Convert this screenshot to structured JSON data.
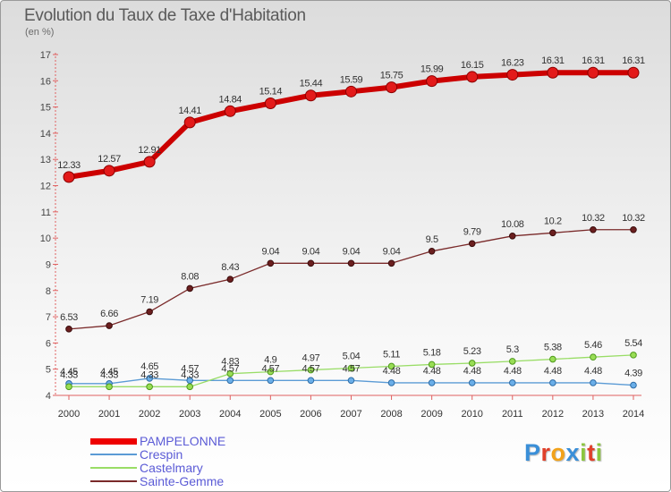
{
  "title": "Evolution du Taux de Taxe d'Habitation",
  "subtitle": "(en %)",
  "logo": {
    "letters": [
      {
        "ch": "P",
        "color": "#3a8fd8"
      },
      {
        "ch": "r",
        "color": "#e0402a"
      },
      {
        "ch": "o",
        "color": "#f2a21a"
      },
      {
        "ch": "x",
        "color": "#3a8fd8"
      },
      {
        "ch": "i",
        "color": "#8cc63f"
      },
      {
        "ch": "t",
        "color": "#e0402a"
      },
      {
        "ch": "i",
        "color": "#8cc63f"
      }
    ]
  },
  "chart_data": {
    "type": "line",
    "title": "Evolution du Taux de Taxe d'Habitation",
    "subtitle": "(en %)",
    "xlabel": "",
    "ylabel": "",
    "categories": [
      "2000",
      "2001",
      "2002",
      "2003",
      "2004",
      "2005",
      "2006",
      "2007",
      "2008",
      "2009",
      "2010",
      "2011",
      "2012",
      "2013",
      "2014"
    ],
    "ylim": [
      4,
      17
    ],
    "yticks": [
      4,
      5,
      6,
      7,
      8,
      9,
      10,
      11,
      12,
      13,
      14,
      15,
      16,
      17
    ],
    "grid": false,
    "legend_position": "bottom-left",
    "series": [
      {
        "name": "PAMPELONNE",
        "color": "#ff0000",
        "values": [
          12.33,
          12.57,
          12.91,
          14.41,
          14.84,
          15.14,
          15.44,
          15.59,
          15.75,
          15.99,
          16.15,
          16.23,
          16.31,
          16.31,
          16.31
        ]
      },
      {
        "name": "Crespin",
        "color": "#5b9bd5",
        "values": [
          4.45,
          4.45,
          4.65,
          4.57,
          4.57,
          4.57,
          4.57,
          4.57,
          4.48,
          4.48,
          4.48,
          4.48,
          4.48,
          4.48,
          4.39
        ]
      },
      {
        "name": "Castelmary",
        "color": "#99dd66",
        "values": [
          4.33,
          4.33,
          4.33,
          4.33,
          4.83,
          4.9,
          4.97,
          5.04,
          5.11,
          5.18,
          5.23,
          5.3,
          5.38,
          5.46,
          5.54
        ]
      },
      {
        "name": "Sainte-Gemme",
        "color": "#7a2a2a",
        "values": [
          6.53,
          6.66,
          7.19,
          8.08,
          8.43,
          9.04,
          9.04,
          9.04,
          9.04,
          9.5,
          9.79,
          10.08,
          10.2,
          10.32,
          10.32
        ]
      }
    ],
    "point_labels": {
      "PAMPELONNE": [
        "12.33",
        "12.57",
        "12.91",
        "14.41",
        "14.84",
        "15.14",
        "15.44",
        "15.59",
        "15.75",
        "15.99",
        "16.15",
        "16.23",
        "16.31",
        "16.31",
        "16.31"
      ],
      "Crespin": [
        "4.45",
        "4.45",
        "4.65",
        "4.57",
        "4.57",
        "4.57",
        "4.57",
        "4.57",
        "4.48",
        "4.48",
        "4.48",
        "4.48",
        "4.48",
        "4.48",
        "4.39"
      ],
      "Castelmary": [
        "4.33",
        "4.33",
        "4.33",
        "4.33",
        "4.83",
        "4.9",
        "4.97",
        "5.04",
        "5.11",
        "5.18",
        "5.23",
        "5.3",
        "5.38",
        "5.46",
        "5.54"
      ],
      "Sainte-Gemme": [
        "6.53",
        "6.66",
        "7.19",
        "8.08",
        "8.43",
        "9.04",
        "9.04",
        "9.04",
        "9.04",
        "9.5",
        "9.79",
        "10.08",
        "10.2",
        "10.32",
        "10.32"
      ]
    }
  }
}
